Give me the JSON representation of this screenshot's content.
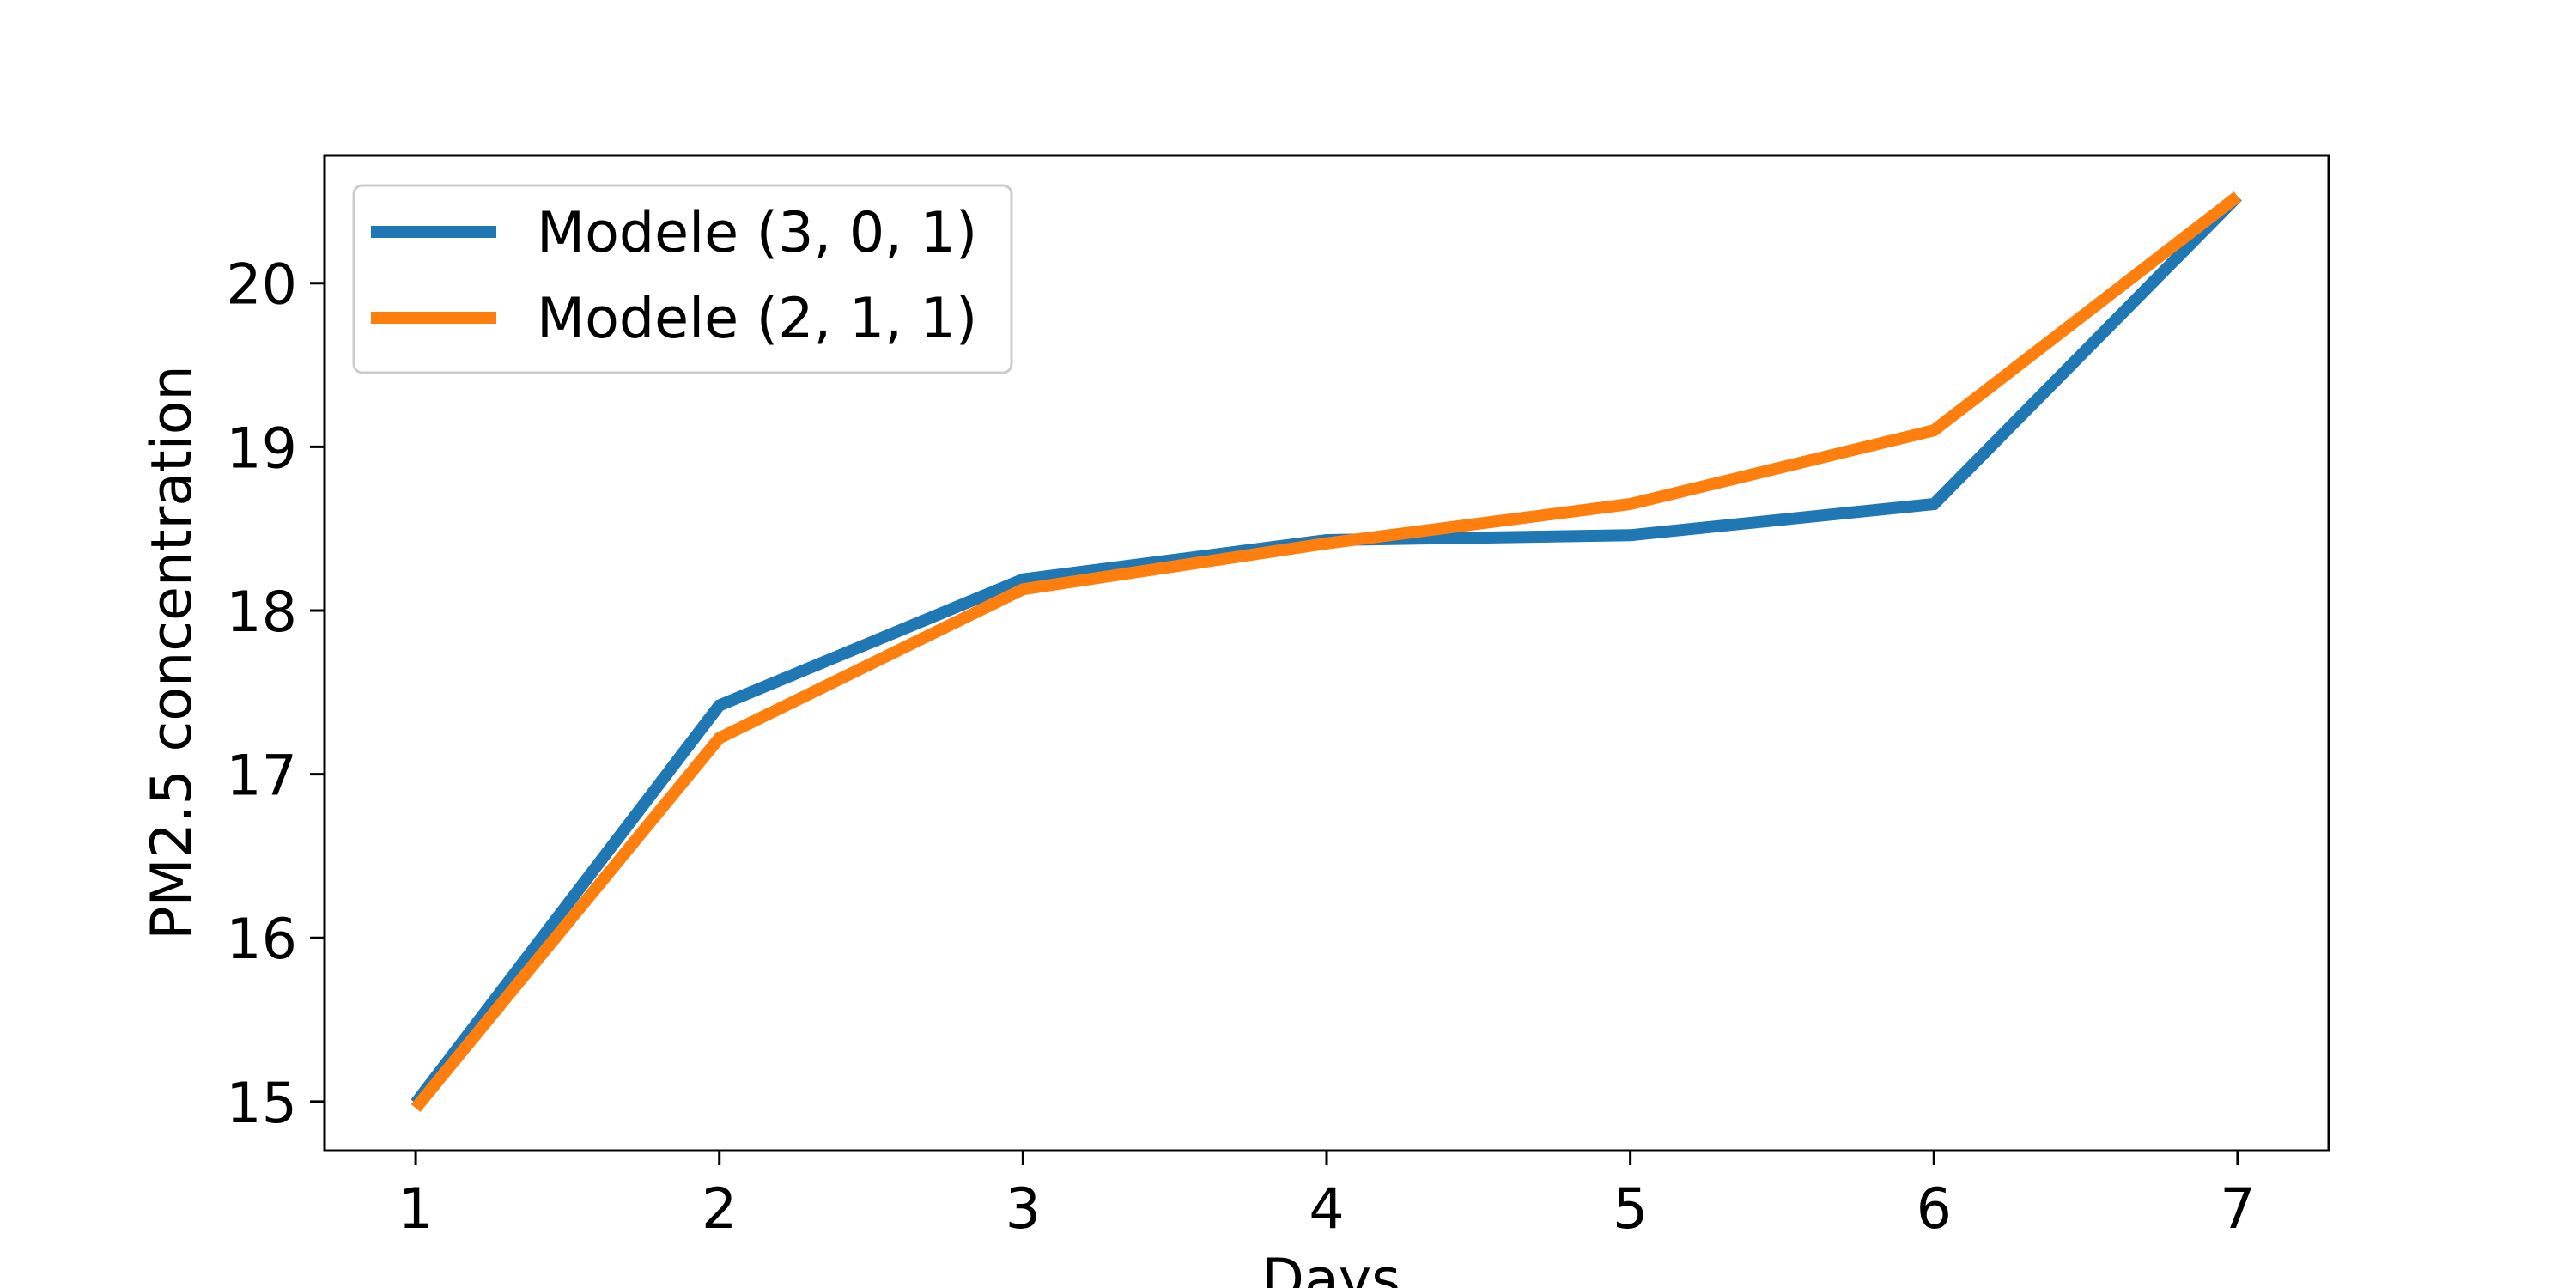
{
  "chart_data": {
    "type": "line",
    "xlabel": "Days",
    "ylabel": "PM2.5 concentration",
    "x": [
      1,
      2,
      3,
      4,
      5,
      6,
      7
    ],
    "xlim": [
      0.7,
      7.3
    ],
    "ylim": [
      14.7,
      20.78
    ],
    "xticks": [
      1,
      2,
      3,
      4,
      5,
      6,
      7
    ],
    "yticks": [
      15,
      16,
      17,
      18,
      19,
      20
    ],
    "grid": false,
    "legend_position": "upper-left",
    "series": [
      {
        "name": "Modele (3, 0, 1)",
        "color": "#1f77b4",
        "values": [
          14.99,
          17.42,
          18.19,
          18.43,
          18.46,
          18.65,
          20.53
        ]
      },
      {
        "name": "Modele (2, 1, 1)",
        "color": "#ff7f0e",
        "values": [
          14.96,
          17.22,
          18.13,
          18.41,
          18.65,
          19.1,
          20.53
        ]
      }
    ]
  }
}
